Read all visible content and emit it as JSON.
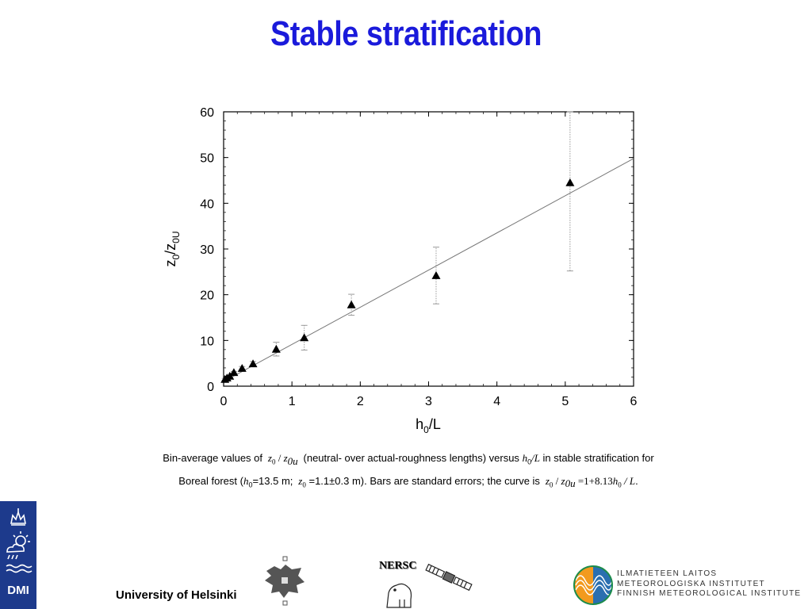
{
  "slide": {
    "title": "Stable stratification"
  },
  "chart_data": {
    "type": "scatter",
    "title": "",
    "xlabel": "h₀/L",
    "ylabel": "z₀/z₀ᵤ",
    "xlim": [
      0,
      6
    ],
    "ylim": [
      0,
      60
    ],
    "x_ticks": [
      0,
      1,
      2,
      3,
      4,
      5,
      6
    ],
    "y_ticks": [
      0,
      10,
      20,
      30,
      40,
      50,
      60
    ],
    "grid": false,
    "legend": "none",
    "marker": "triangle",
    "points": [
      {
        "x": 0.02,
        "y": 1.5,
        "lo": 1.3,
        "hi": 1.7
      },
      {
        "x": 0.05,
        "y": 1.8,
        "lo": 1.6,
        "hi": 2.0
      },
      {
        "x": 0.09,
        "y": 2.2,
        "lo": 2.0,
        "hi": 2.4
      },
      {
        "x": 0.15,
        "y": 3.0,
        "lo": 2.8,
        "hi": 3.2
      },
      {
        "x": 0.27,
        "y": 3.9,
        "lo": 3.5,
        "hi": 4.3
      },
      {
        "x": 0.43,
        "y": 4.9,
        "lo": 4.4,
        "hi": 5.4
      },
      {
        "x": 0.77,
        "y": 8.1,
        "lo": 6.6,
        "hi": 9.6
      },
      {
        "x": 1.18,
        "y": 10.6,
        "lo": 7.9,
        "hi": 13.3
      },
      {
        "x": 1.87,
        "y": 17.8,
        "lo": 15.5,
        "hi": 20.1
      },
      {
        "x": 3.11,
        "y": 24.2,
        "lo": 18.0,
        "hi": 30.4
      },
      {
        "x": 5.07,
        "y": 44.5,
        "lo": 25.2,
        "hi": 60.0
      }
    ],
    "fit_line": {
      "intercept": 1,
      "slope": 8.13
    }
  },
  "caption": {
    "text1": "Bin-average values of",
    "ratio_a": "z",
    "ratio_a_sub": "0",
    "ratio_sep": " / ",
    "ratio_b": "z",
    "ratio_b_sub": "0u",
    "text2": "(neutral- over actual-roughness lengths) versus",
    "h": "h",
    "h_sub": "0",
    "over_L": "/L",
    "text3": "in stable stratification for",
    "text4": "Boreal forest (",
    "h2": "h",
    "h2_sub": "0",
    "text5": "=13.5 m;",
    "z": "z",
    "z_sub": "0",
    "text6": "=1.1±0.3 m). Bars are standard errors; the curve is",
    "eq_z": "z",
    "eq_z_sub": "0",
    "eq_sep": " / ",
    "eq_z2": "z",
    "eq_z2_sub": "0u",
    "eq_rhs": " =1+8.13",
    "eq_h": "h",
    "eq_h_sub": "0",
    "eq_end": " / L",
    "period": "."
  },
  "footer": {
    "dmi_label": "DMI",
    "university_label": "University of Helsinki",
    "nersc_label": "NERSC",
    "fmi_lines": [
      "ILMATIETEEN LAITOS",
      "METEOROLOGISKA INSTITUTET",
      "FINNISH METEOROLOGICAL INSTITUTE"
    ]
  },
  "colors": {
    "title": "#1a1adb",
    "dmi_background": "#1d3a8c",
    "fit_line": "#777777",
    "error_bar": "#999999",
    "marker": "#000000"
  }
}
